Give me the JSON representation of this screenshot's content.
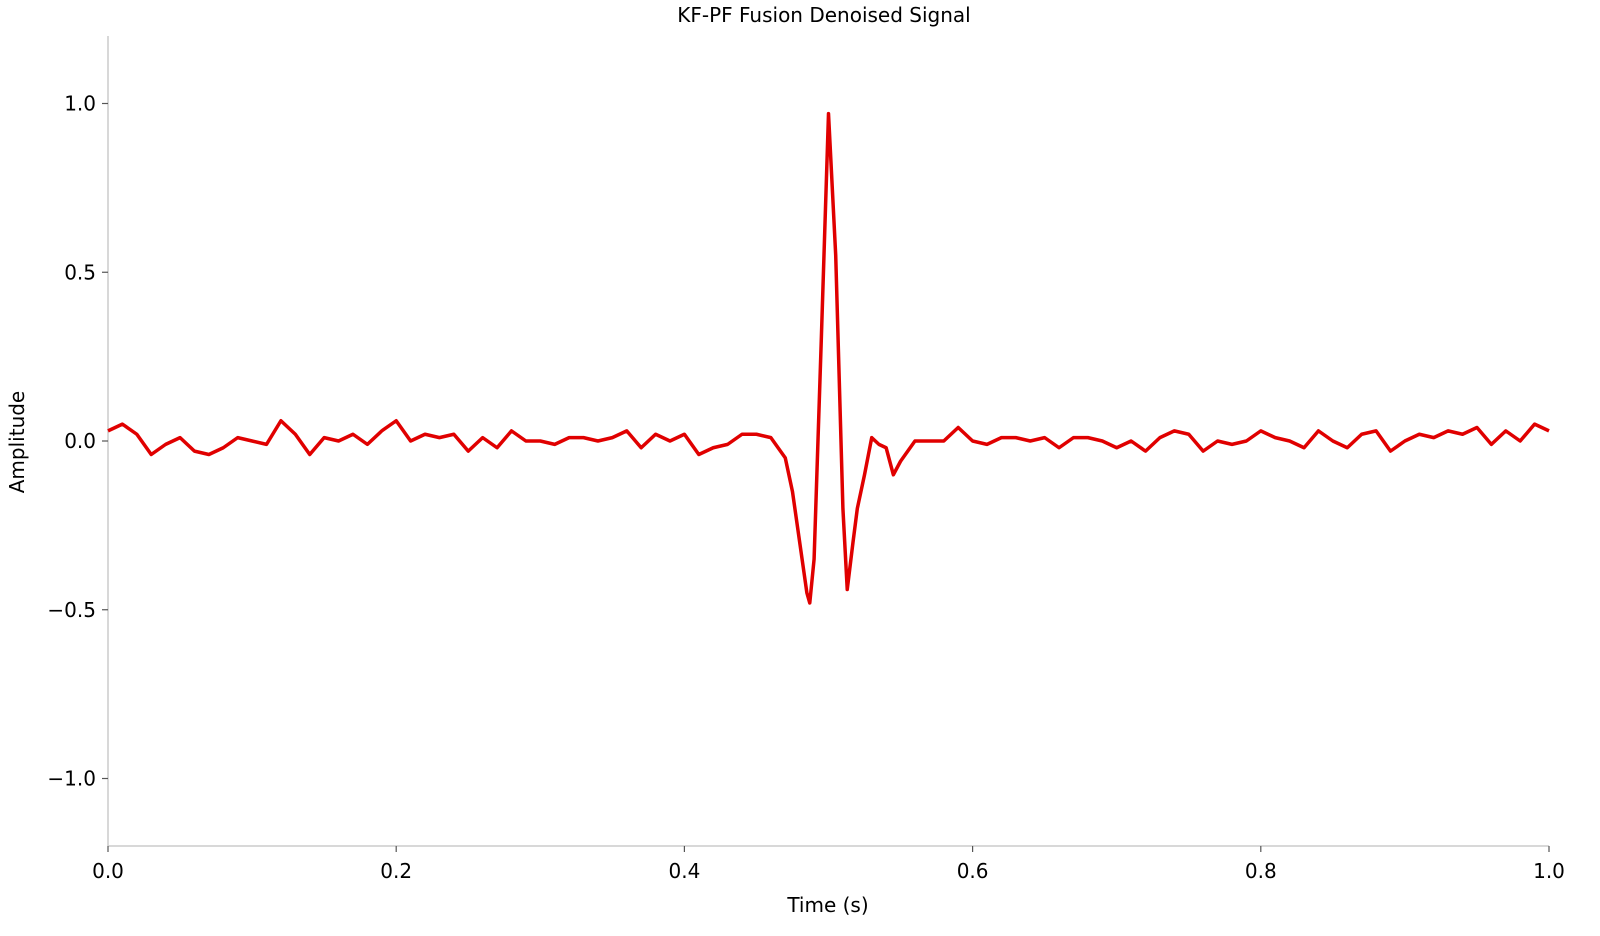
{
  "chart_data": {
    "type": "line",
    "title": "KF-PF Fusion Denoised Signal",
    "xlabel": "Time (s)",
    "ylabel": "Amplitude",
    "x": [
      0,
      0.01,
      0.02,
      0.03,
      0.04,
      0.05,
      0.06,
      0.07,
      0.08,
      0.09,
      0.1,
      0.11,
      0.12,
      0.13,
      0.14,
      0.15,
      0.16,
      0.17,
      0.18,
      0.19,
      0.2,
      0.21,
      0.22,
      0.23,
      0.24,
      0.25,
      0.26,
      0.27,
      0.28,
      0.29,
      0.3,
      0.31,
      0.32,
      0.33,
      0.34,
      0.35,
      0.36,
      0.37,
      0.38,
      0.39,
      0.4,
      0.41,
      0.42,
      0.43,
      0.44,
      0.45,
      0.46,
      0.47,
      0.475,
      0.48,
      0.485,
      0.487,
      0.49,
      0.495,
      0.5,
      0.505,
      0.51,
      0.513,
      0.517,
      0.52,
      0.525,
      0.53,
      0.535,
      0.54,
      0.545,
      0.55,
      0.56,
      0.57,
      0.58,
      0.59,
      0.6,
      0.61,
      0.62,
      0.63,
      0.64,
      0.65,
      0.66,
      0.67,
      0.68,
      0.69,
      0.7,
      0.71,
      0.72,
      0.73,
      0.74,
      0.75,
      0.76,
      0.77,
      0.78,
      0.79,
      0.8,
      0.81,
      0.82,
      0.83,
      0.84,
      0.85,
      0.86,
      0.87,
      0.88,
      0.89,
      0.9,
      0.91,
      0.92,
      0.93,
      0.94,
      0.95,
      0.96,
      0.97,
      0.98,
      0.99,
      1.0
    ],
    "values": [
      0.03,
      0.05,
      0.02,
      -0.04,
      -0.01,
      0.01,
      -0.03,
      -0.04,
      -0.02,
      0.01,
      0.0,
      -0.01,
      0.06,
      0.02,
      -0.04,
      0.01,
      0.0,
      0.02,
      -0.01,
      0.03,
      0.06,
      0.0,
      0.02,
      0.01,
      0.02,
      -0.03,
      0.01,
      -0.02,
      0.03,
      0.0,
      0.0,
      -0.01,
      0.01,
      0.01,
      0.0,
      0.01,
      0.03,
      -0.02,
      0.02,
      0.0,
      0.02,
      -0.04,
      -0.02,
      -0.01,
      0.02,
      0.02,
      0.01,
      -0.05,
      -0.15,
      -0.3,
      -0.45,
      -0.48,
      -0.35,
      0.3,
      0.97,
      0.55,
      -0.2,
      -0.44,
      -0.3,
      -0.2,
      -0.1,
      0.01,
      -0.01,
      -0.02,
      -0.1,
      -0.06,
      0.0,
      0.0,
      0.0,
      0.04,
      0.0,
      -0.01,
      0.01,
      0.01,
      0.0,
      0.01,
      -0.02,
      0.01,
      0.01,
      0.0,
      -0.02,
      0.0,
      -0.03,
      0.01,
      0.03,
      0.02,
      -0.03,
      0.0,
      -0.01,
      0.0,
      0.03,
      0.01,
      0.0,
      -0.02,
      0.03,
      0.0,
      -0.02,
      0.02,
      0.03,
      -0.03,
      0.0,
      0.02,
      0.01,
      0.03,
      0.02,
      0.04,
      -0.01,
      0.03,
      0.0,
      0.05,
      0.03
    ],
    "color": "#e00000",
    "xlim": [
      0,
      1
    ],
    "ylim": [
      -1.2,
      1.2
    ],
    "xticks": [
      {
        "value": 0,
        "label": "0.0"
      },
      {
        "value": 0.2,
        "label": "0.2"
      },
      {
        "value": 0.4,
        "label": "0.4"
      },
      {
        "value": 0.6,
        "label": "0.6"
      },
      {
        "value": 0.8,
        "label": "0.8"
      },
      {
        "value": 1,
        "label": "1.0"
      }
    ],
    "yticks": [
      {
        "value": -1,
        "label": "−1.0"
      },
      {
        "value": -0.5,
        "label": "−0.5"
      },
      {
        "value": 0,
        "label": "0.0"
      },
      {
        "value": 0.5,
        "label": "0.5"
      },
      {
        "value": 1,
        "label": "1.0"
      }
    ],
    "grid": false
  }
}
